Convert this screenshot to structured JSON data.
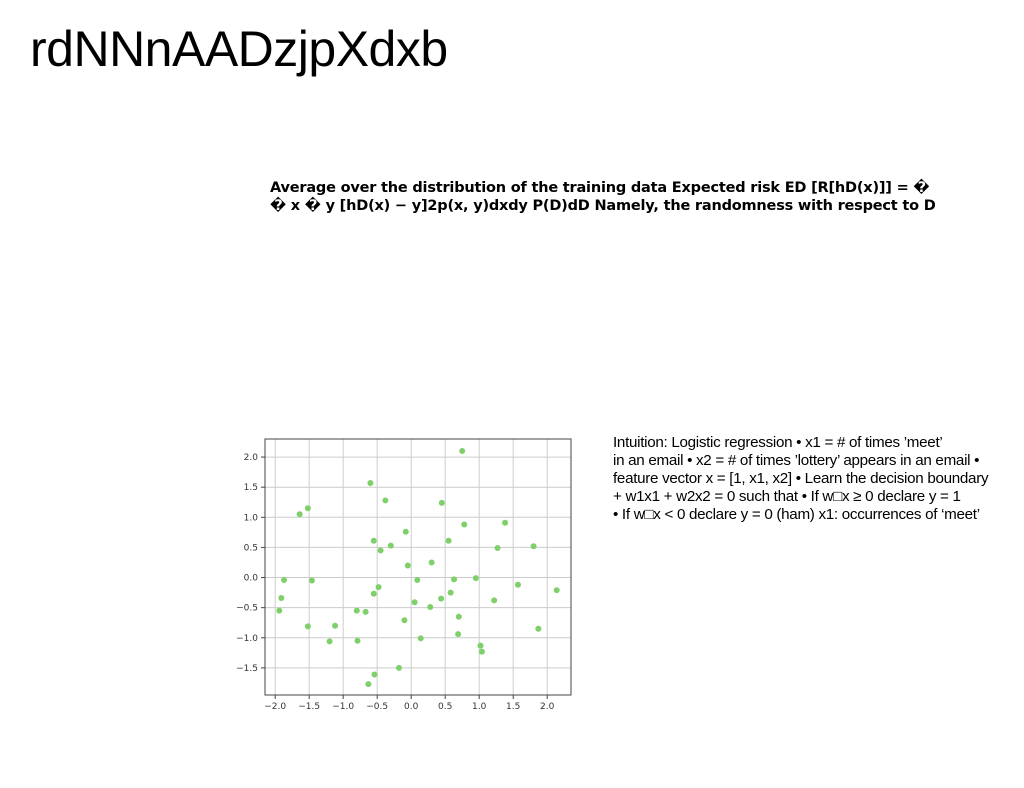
{
  "slide": {
    "title": "rdNNnAADzjpXdxb",
    "risk_text": [
      "Average over the distribution of the training data Expected risk ED [R[hD(x)]] = �",
      "� x � y [hD(x) − y]2p(x, y)dxdy P(D)dD Namely, the randomness with respect to D"
    ],
    "intuition_text": [
      "Intuition: Logistic regression • x1 = # of times ’meet’",
      "in an email • x2 = # of times ’lottery’ appears in an email •",
      "feature vector x = [1, x1, x2] • Learn the decision boundary",
      "+ w1x1 + w2x2 = 0 such that • If w□x ≥ 0 declare y = 1",
      "• If w□x < 0 declare y = 0 (ham) x1: occurrences of ‘meet’"
    ]
  },
  "colors": {
    "points": "#7fcf6a",
    "grid": "#cccccc",
    "axes": "#444444"
  },
  "chart_data": {
    "type": "scatter",
    "title": "",
    "xlabel": "",
    "ylabel": "",
    "xlim": [
      -2.15,
      2.35
    ],
    "ylim": [
      -1.95,
      2.3
    ],
    "grid": true,
    "x_ticks": [
      -2.0,
      -1.5,
      -1.0,
      -0.5,
      0.0,
      0.5,
      1.0,
      1.5,
      2.0
    ],
    "y_ticks": [
      2.0,
      1.5,
      1.0,
      0.5,
      0.0,
      -0.5,
      -1.0,
      -1.5
    ],
    "x_tick_labels": [
      "−2.0",
      "−1.5",
      "−1.0",
      "−0.5",
      "0.0",
      "0.5",
      "1.0",
      "1.5",
      "2.0"
    ],
    "y_tick_labels": [
      "2.0",
      "1.5",
      "1.0",
      "0.5",
      "0.0",
      "−0.5",
      "−1.0",
      "−1.5"
    ],
    "points": [
      {
        "x": 0.75,
        "y": 2.1
      },
      {
        "x": -0.6,
        "y": 1.57
      },
      {
        "x": -0.38,
        "y": 1.28
      },
      {
        "x": 0.45,
        "y": 1.24
      },
      {
        "x": -1.52,
        "y": 1.15
      },
      {
        "x": -1.64,
        "y": 1.05
      },
      {
        "x": 1.38,
        "y": 0.91
      },
      {
        "x": 0.78,
        "y": 0.88
      },
      {
        "x": -0.08,
        "y": 0.76
      },
      {
        "x": -0.55,
        "y": 0.61
      },
      {
        "x": 0.55,
        "y": 0.61
      },
      {
        "x": -0.3,
        "y": 0.53
      },
      {
        "x": 1.8,
        "y": 0.52
      },
      {
        "x": 1.27,
        "y": 0.49
      },
      {
        "x": -0.45,
        "y": 0.45
      },
      {
        "x": 0.3,
        "y": 0.25
      },
      {
        "x": -0.05,
        "y": 0.2
      },
      {
        "x": -1.87,
        "y": -0.04
      },
      {
        "x": -1.46,
        "y": -0.05
      },
      {
        "x": 0.09,
        "y": -0.04
      },
      {
        "x": 0.63,
        "y": -0.03
      },
      {
        "x": 0.95,
        "y": -0.01
      },
      {
        "x": 1.57,
        "y": -0.12
      },
      {
        "x": -0.48,
        "y": -0.16
      },
      {
        "x": 2.14,
        "y": -0.21
      },
      {
        "x": 0.58,
        "y": -0.25
      },
      {
        "x": -0.55,
        "y": -0.27
      },
      {
        "x": -1.91,
        "y": -0.34
      },
      {
        "x": 0.44,
        "y": -0.35
      },
      {
        "x": 1.22,
        "y": -0.38
      },
      {
        "x": 0.05,
        "y": -0.41
      },
      {
        "x": 0.28,
        "y": -0.49
      },
      {
        "x": -1.94,
        "y": -0.55
      },
      {
        "x": -0.8,
        "y": -0.55
      },
      {
        "x": -0.67,
        "y": -0.57
      },
      {
        "x": 0.7,
        "y": -0.65
      },
      {
        "x": -0.1,
        "y": -0.71
      },
      {
        "x": -1.52,
        "y": -0.81
      },
      {
        "x": -1.12,
        "y": -0.8
      },
      {
        "x": 1.87,
        "y": -0.85
      },
      {
        "x": 0.69,
        "y": -0.94
      },
      {
        "x": 0.14,
        "y": -1.01
      },
      {
        "x": -0.79,
        "y": -1.05
      },
      {
        "x": -1.2,
        "y": -1.06
      },
      {
        "x": 1.02,
        "y": -1.13
      },
      {
        "x": 1.04,
        "y": -1.23
      },
      {
        "x": -0.18,
        "y": -1.5
      },
      {
        "x": -0.54,
        "y": -1.61
      },
      {
        "x": -0.63,
        "y": -1.77
      }
    ]
  }
}
